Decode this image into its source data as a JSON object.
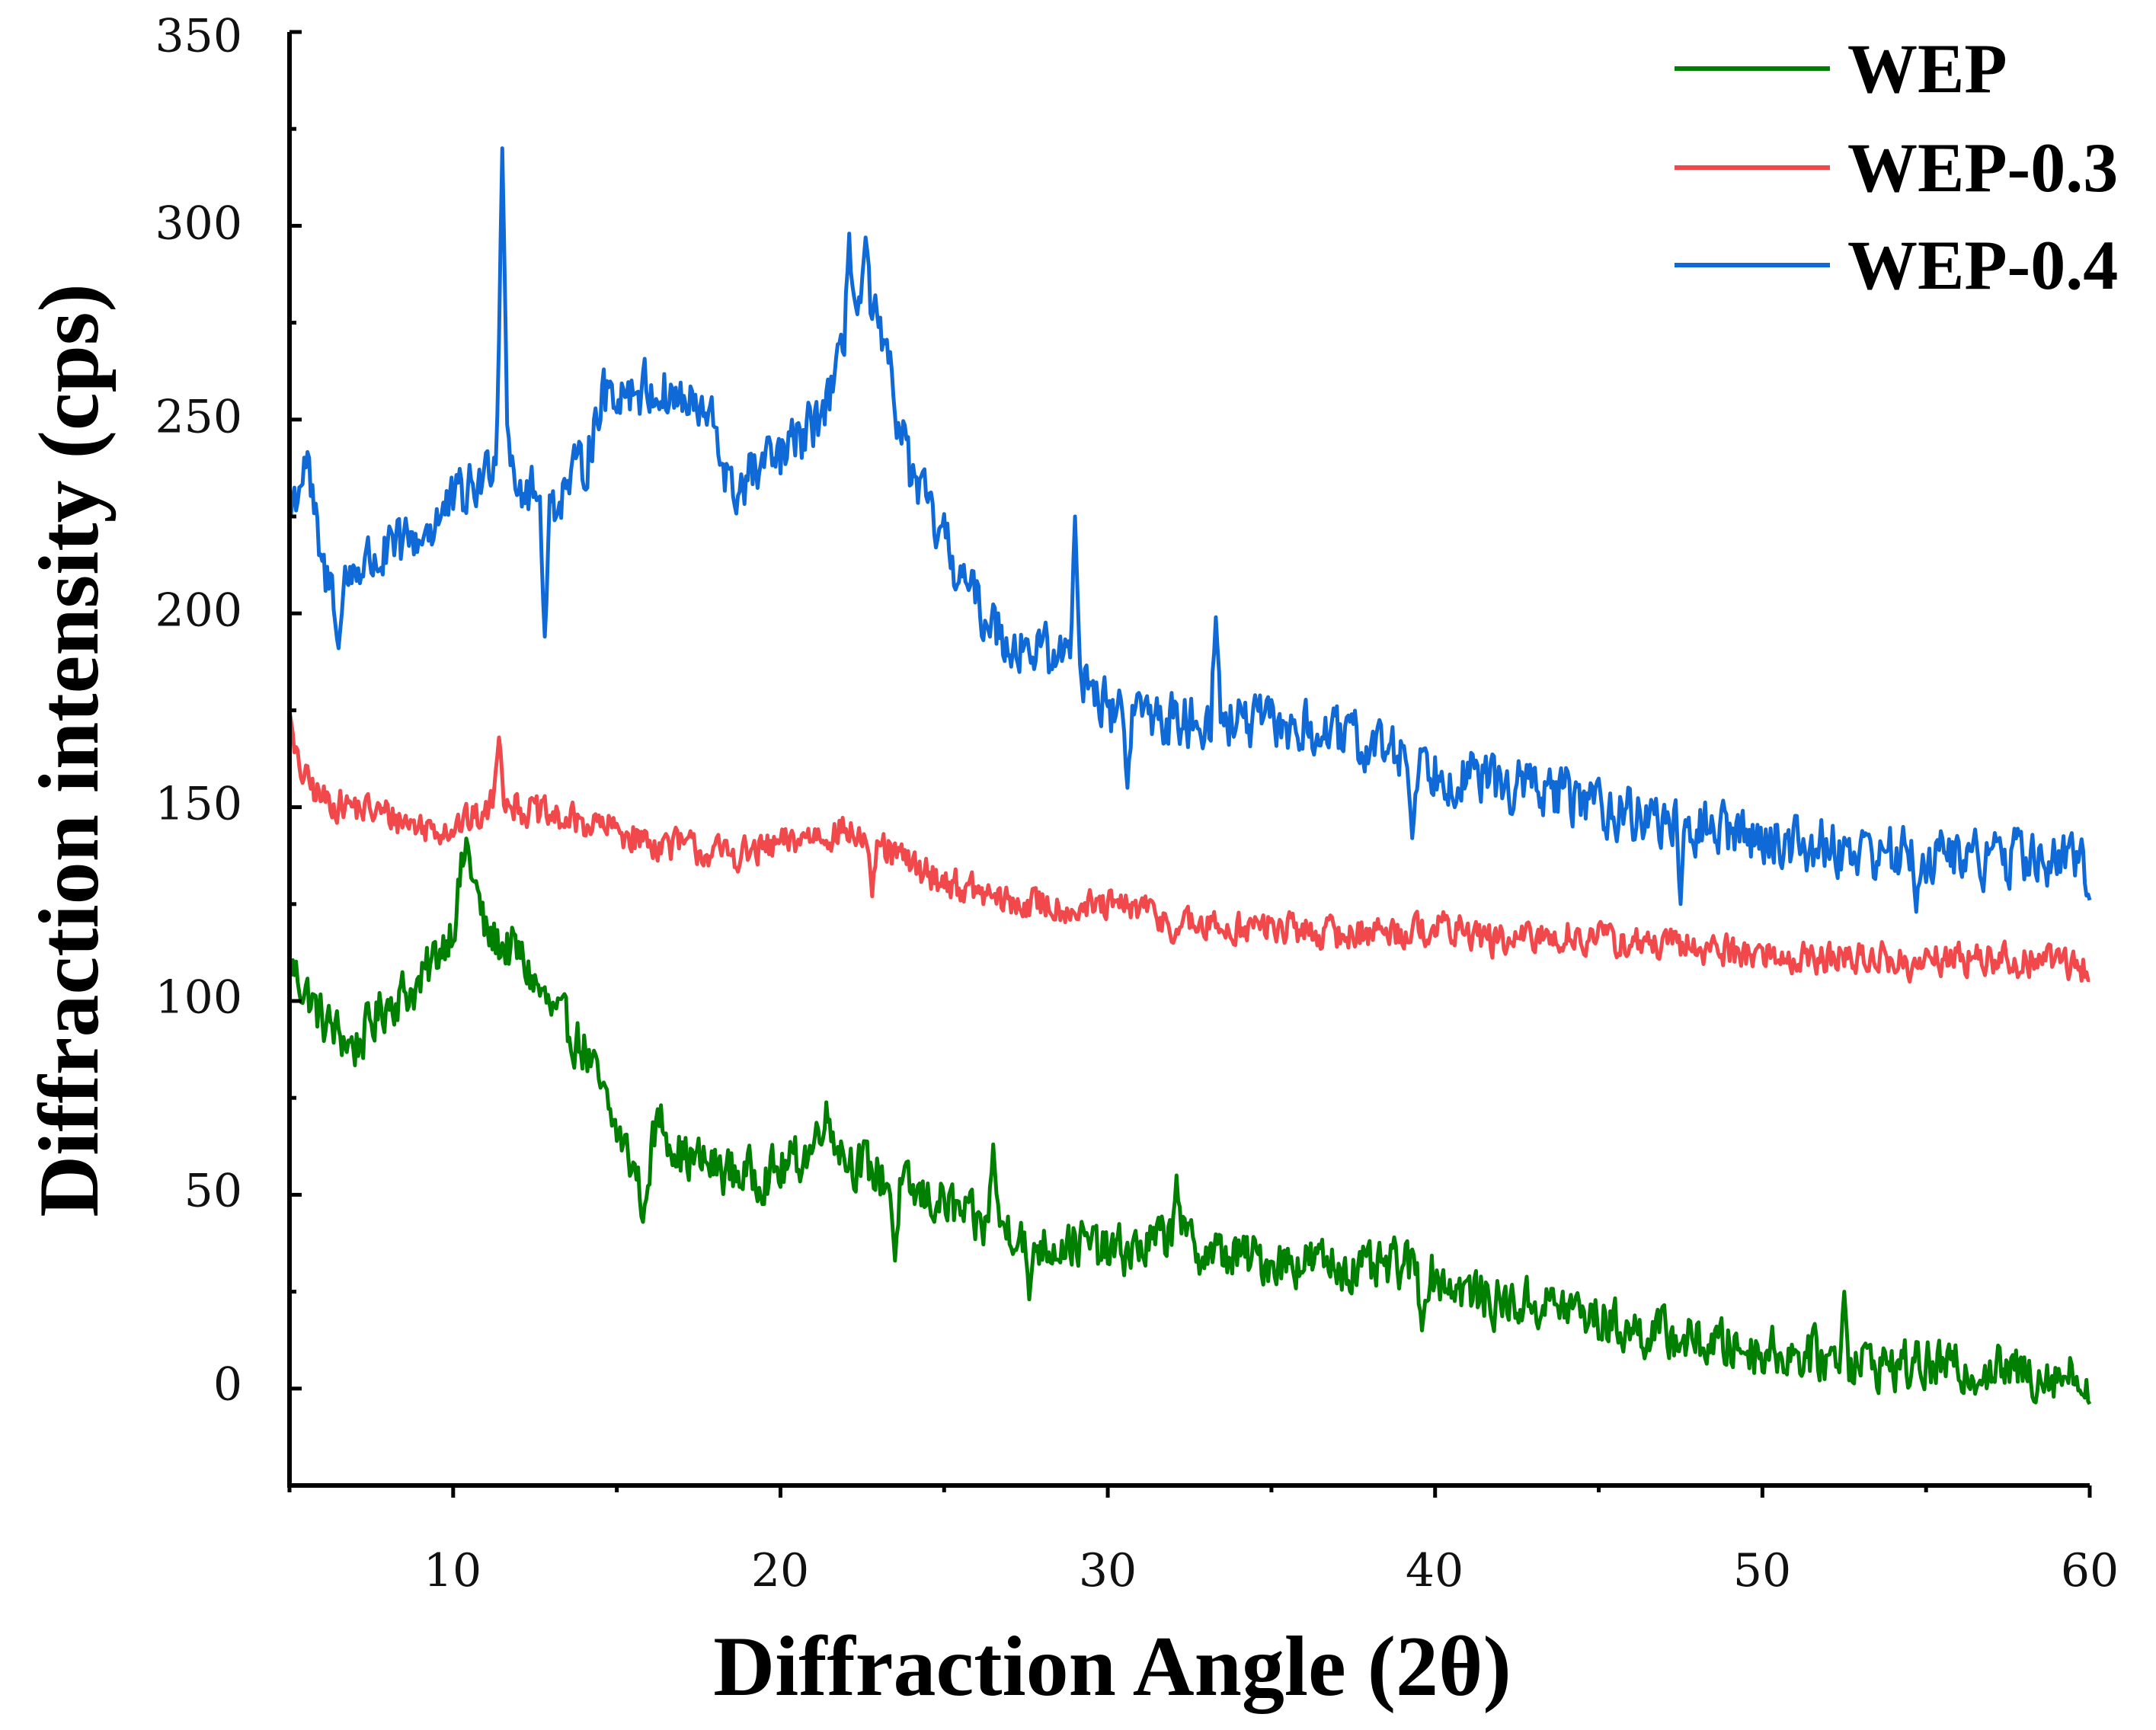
{
  "chart_data": {
    "type": "line",
    "title": "",
    "xlabel": "Diffraction Angle (2θ)",
    "ylabel": "Diffraction intensity (cps)",
    "xlim": [
      5,
      60
    ],
    "ylim": [
      -25,
      350
    ],
    "xticks": [
      10,
      20,
      30,
      40,
      50,
      60
    ],
    "yticks": [
      0,
      50,
      100,
      150,
      200,
      250,
      300,
      350
    ],
    "legend_position": "top-right",
    "series": [
      {
        "name": "WEP",
        "color": "#008000",
        "keypoints": [
          [
            5,
            110
          ],
          [
            6,
            95
          ],
          [
            7,
            88
          ],
          [
            8,
            100
          ],
          [
            9,
            104
          ],
          [
            10,
            120
          ],
          [
            10.4,
            140
          ],
          [
            11,
            117
          ],
          [
            12,
            112
          ],
          [
            13,
            97
          ],
          [
            14,
            88
          ],
          [
            14.8,
            70
          ],
          [
            15.8,
            52
          ],
          [
            16.3,
            70
          ],
          [
            17,
            60
          ],
          [
            18,
            57
          ],
          [
            19,
            55
          ],
          [
            20,
            56
          ],
          [
            21,
            62
          ],
          [
            21.3,
            72
          ],
          [
            22,
            60
          ],
          [
            23,
            55
          ],
          [
            24,
            50
          ],
          [
            25,
            48
          ],
          [
            26,
            42
          ],
          [
            27,
            42
          ],
          [
            28,
            37
          ],
          [
            29,
            38
          ],
          [
            30,
            35
          ],
          [
            31,
            36
          ],
          [
            32,
            40
          ],
          [
            33,
            35
          ],
          [
            34,
            34
          ],
          [
            35,
            33
          ],
          [
            36,
            33
          ],
          [
            37,
            32
          ],
          [
            38,
            30
          ],
          [
            39,
            32
          ],
          [
            40,
            29
          ],
          [
            41,
            25
          ],
          [
            42,
            22
          ],
          [
            43,
            22
          ],
          [
            44,
            21
          ],
          [
            45,
            18
          ],
          [
            46,
            15
          ],
          [
            47,
            14
          ],
          [
            48,
            12
          ],
          [
            49,
            11
          ],
          [
            50,
            10
          ],
          [
            51,
            9
          ],
          [
            52,
            8
          ],
          [
            53,
            7
          ],
          [
            54,
            6
          ],
          [
            55,
            6
          ],
          [
            56,
            5
          ],
          [
            57,
            5
          ],
          [
            58,
            4
          ],
          [
            59,
            4
          ],
          [
            60,
            3
          ]
        ],
        "spikes": [
          [
            26.5,
            63
          ],
          [
            32.1,
            55
          ],
          [
            52.5,
            25
          ],
          [
            15.8,
            43
          ],
          [
            23.5,
            33
          ],
          [
            27.6,
            23
          ],
          [
            39.6,
            15
          ],
          [
            60,
            -4
          ]
        ],
        "noise": 9
      },
      {
        "name": "WEP-0.3",
        "color": "#f0484b",
        "keypoints": [
          [
            5,
            165
          ],
          [
            5.5,
            157
          ],
          [
            6,
            152
          ],
          [
            7,
            150
          ],
          [
            8,
            148
          ],
          [
            9,
            145
          ],
          [
            10,
            145
          ],
          [
            11,
            148
          ],
          [
            11.4,
            155
          ],
          [
            12,
            150
          ],
          [
            13,
            147
          ],
          [
            14,
            146
          ],
          [
            15,
            144
          ],
          [
            16,
            141
          ],
          [
            17,
            140
          ],
          [
            18,
            138
          ],
          [
            19,
            138
          ],
          [
            20,
            140
          ],
          [
            21,
            143
          ],
          [
            22,
            144
          ],
          [
            23,
            140
          ],
          [
            24,
            135
          ],
          [
            25,
            131
          ],
          [
            26,
            128
          ],
          [
            27,
            125
          ],
          [
            28,
            125
          ],
          [
            29,
            124
          ],
          [
            30,
            124
          ],
          [
            31,
            124
          ],
          [
            32,
            120
          ],
          [
            33,
            119
          ],
          [
            34,
            119
          ],
          [
            35,
            119
          ],
          [
            36,
            118
          ],
          [
            37,
            117
          ],
          [
            38,
            118
          ],
          [
            39,
            118
          ],
          [
            40,
            119
          ],
          [
            41,
            118
          ],
          [
            42,
            115
          ],
          [
            43,
            116
          ],
          [
            44,
            117
          ],
          [
            45,
            116
          ],
          [
            46,
            115
          ],
          [
            47,
            114
          ],
          [
            48,
            114
          ],
          [
            49,
            113
          ],
          [
            50,
            112
          ],
          [
            51,
            111
          ],
          [
            52,
            111
          ],
          [
            53,
            111
          ],
          [
            54,
            111
          ],
          [
            55,
            110
          ],
          [
            56,
            111
          ],
          [
            57,
            111
          ],
          [
            58,
            110
          ],
          [
            59,
            111
          ],
          [
            60,
            108
          ]
        ],
        "spikes": [
          [
            5,
            175
          ],
          [
            11.4,
            168
          ],
          [
            22.8,
            127
          ],
          [
            32,
            115
          ],
          [
            54.5,
            105
          ]
        ],
        "noise": 6
      },
      {
        "name": "WEP-0.4",
        "color": "#0f6ad8",
        "keypoints": [
          [
            5,
            225
          ],
          [
            5.5,
            240
          ],
          [
            6,
            210
          ],
          [
            6.5,
            205
          ],
          [
            7,
            212
          ],
          [
            8,
            215
          ],
          [
            9,
            220
          ],
          [
            10,
            228
          ],
          [
            11,
            235
          ],
          [
            11.3,
            245
          ],
          [
            11.6,
            252
          ],
          [
            12,
            232
          ],
          [
            13,
            228
          ],
          [
            14,
            238
          ],
          [
            14.5,
            255
          ],
          [
            15,
            258
          ],
          [
            16,
            258
          ],
          [
            17,
            255
          ],
          [
            18,
            248
          ],
          [
            18.5,
            230
          ],
          [
            19,
            235
          ],
          [
            20,
            240
          ],
          [
            21,
            248
          ],
          [
            21.8,
            262
          ],
          [
            22.3,
            280
          ],
          [
            22.8,
            278
          ],
          [
            23.5,
            255
          ],
          [
            24,
            235
          ],
          [
            25,
            218
          ],
          [
            26,
            202
          ],
          [
            27,
            193
          ],
          [
            28,
            190
          ],
          [
            29,
            188
          ],
          [
            30,
            175
          ],
          [
            31,
            175
          ],
          [
            32,
            172
          ],
          [
            33,
            173
          ],
          [
            34,
            172
          ],
          [
            35,
            171
          ],
          [
            36,
            170
          ],
          [
            37,
            168
          ],
          [
            38,
            166
          ],
          [
            39,
            164
          ],
          [
            40,
            160
          ],
          [
            41,
            158
          ],
          [
            42,
            156
          ],
          [
            43,
            155
          ],
          [
            44,
            153
          ],
          [
            45,
            151
          ],
          [
            46,
            148
          ],
          [
            47,
            147
          ],
          [
            48,
            145
          ],
          [
            49,
            144
          ],
          [
            50,
            142
          ],
          [
            51,
            141
          ],
          [
            52,
            140
          ],
          [
            53,
            139
          ],
          [
            54,
            138
          ],
          [
            55,
            138
          ],
          [
            56,
            137
          ],
          [
            57,
            137
          ],
          [
            58,
            137
          ],
          [
            59,
            136
          ],
          [
            60,
            135
          ]
        ],
        "spikes": [
          [
            11.5,
            320
          ],
          [
            22.1,
            298
          ],
          [
            22.6,
            297
          ],
          [
            29,
            225
          ],
          [
            33.3,
            199
          ],
          [
            12.8,
            194
          ],
          [
            6.5,
            191
          ],
          [
            30.6,
            155
          ],
          [
            39.3,
            142
          ],
          [
            47.5,
            125
          ],
          [
            54.7,
            123
          ],
          [
            60,
            126
          ]
        ],
        "noise": 10
      }
    ]
  },
  "chart_labels": {
    "xlabel": "Diffraction Angle (2θ)",
    "ylabel": "Diffraction intensity (cps)",
    "xtick_labels": [
      "10",
      "20",
      "30",
      "40",
      "50",
      "60"
    ],
    "ytick_labels": [
      "0",
      "50",
      "100",
      "150",
      "200",
      "250",
      "300",
      "350"
    ],
    "legend": [
      "WEP",
      "WEP-0.3",
      "WEP-0.4"
    ]
  }
}
